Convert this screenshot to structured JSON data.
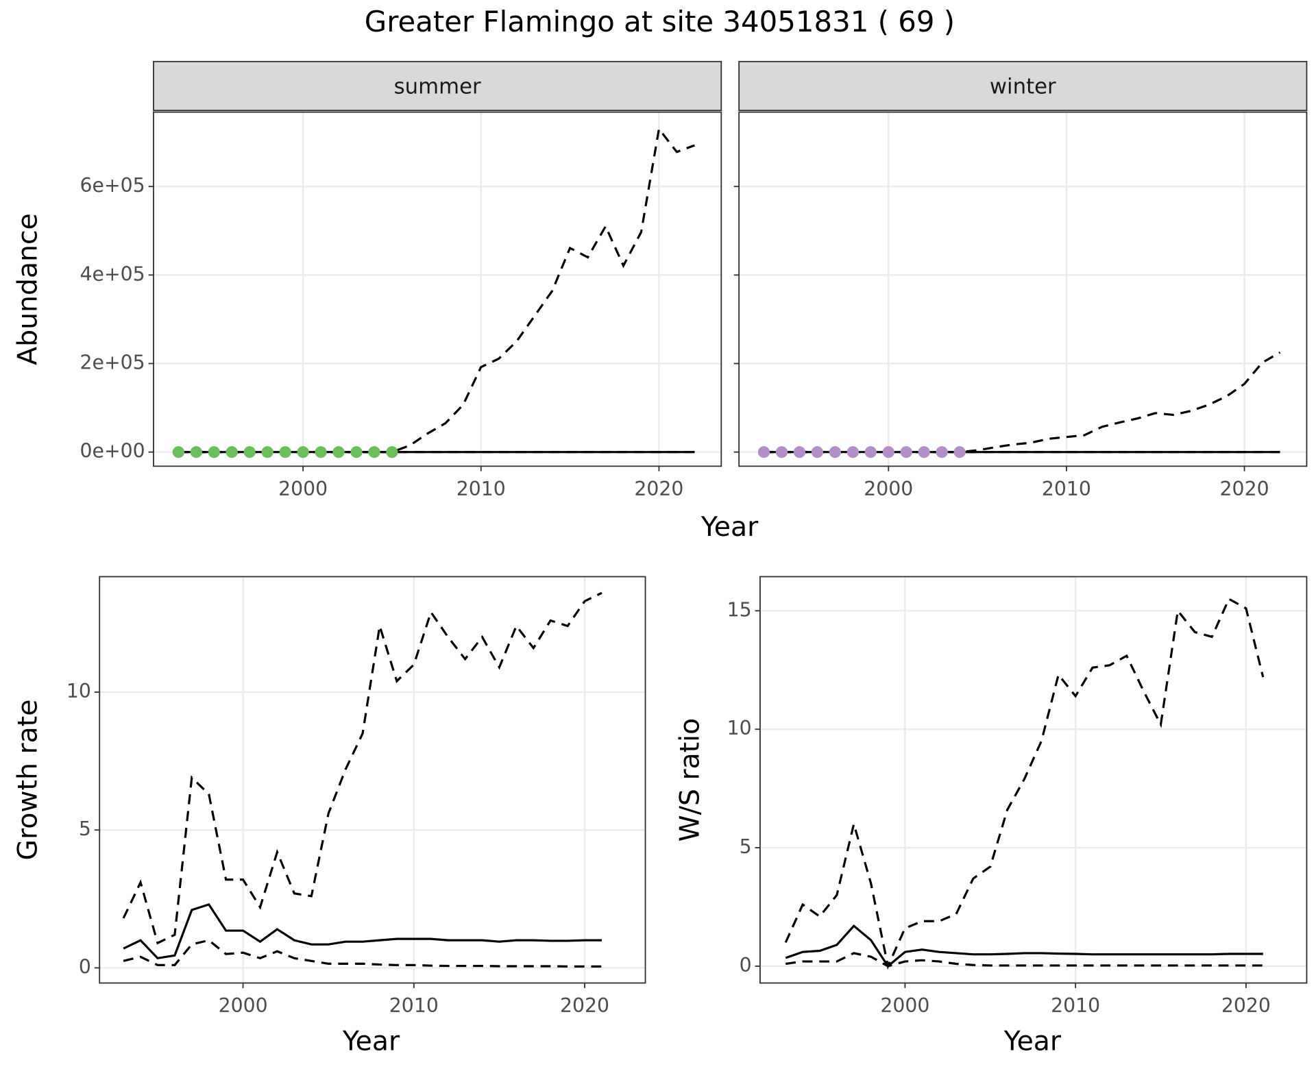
{
  "title": "Greater Flamingo at site 34051831 ( 69 )",
  "chart_data": [
    {
      "type": "line",
      "strip": "summer",
      "ylabel": "Abundance",
      "xlabel": "Year",
      "x": [
        1993,
        1994,
        1995,
        1996,
        1997,
        1998,
        1999,
        2000,
        2001,
        2002,
        2003,
        2004,
        2005,
        2006,
        2007,
        2008,
        2009,
        2010,
        2011,
        2012,
        2013,
        2014,
        2015,
        2016,
        2017,
        2018,
        2019,
        2020,
        2021,
        2022
      ],
      "xlim": [
        1991.6,
        2023.5
      ],
      "xticks": [
        2000,
        2010,
        2020
      ],
      "ylim": [
        -32000,
        768000
      ],
      "yticks": [
        {
          "value": 0,
          "label": "0e+00"
        },
        {
          "value": 200000,
          "label": "2e+05"
        },
        {
          "value": 400000,
          "label": "4e+05"
        },
        {
          "value": 600000,
          "label": "6e+05"
        }
      ],
      "grid": true,
      "series": [
        {
          "color": "#000000",
          "dashed": true,
          "values": [
            0,
            0,
            0,
            0,
            0,
            0,
            0,
            0,
            0,
            0,
            0,
            0,
            0,
            15000,
            42000,
            65000,
            107000,
            192000,
            211000,
            250000,
            307000,
            364000,
            461000,
            440000,
            510000,
            421000,
            497000,
            730000,
            678000,
            693000
          ]
        },
        {
          "color": "#000000",
          "dashed": true,
          "values": [
            0,
            0,
            0,
            0,
            0,
            0,
            0,
            0,
            0,
            0,
            0,
            0,
            0,
            0,
            0,
            0,
            0,
            0,
            0,
            0,
            0,
            0,
            0,
            0,
            0,
            0,
            0,
            0,
            0,
            0
          ]
        },
        {
          "color": "#000000",
          "dashed": false,
          "values": [
            0,
            0,
            0,
            0,
            0,
            0,
            0,
            0,
            0,
            0,
            0,
            0,
            0,
            0,
            0,
            0,
            0,
            0,
            0,
            0,
            0,
            0,
            0,
            0,
            0,
            0,
            0,
            0,
            0,
            0
          ]
        },
        {
          "color": "#6abf5a",
          "marker": "point",
          "values": [
            0,
            0,
            0,
            0,
            0,
            0,
            0,
            0,
            0,
            0,
            0,
            0,
            0,
            null,
            null,
            null,
            null,
            null,
            null,
            null,
            null,
            null,
            null,
            null,
            null,
            null,
            null,
            null,
            null,
            null
          ]
        }
      ]
    },
    {
      "type": "line",
      "strip": "winter",
      "x": [
        1993,
        1994,
        1995,
        1996,
        1997,
        1998,
        1999,
        2000,
        2001,
        2002,
        2003,
        2004,
        2005,
        2006,
        2007,
        2008,
        2009,
        2010,
        2011,
        2012,
        2013,
        2014,
        2015,
        2016,
        2017,
        2018,
        2019,
        2020,
        2021,
        2022
      ],
      "xlim": [
        1991.6,
        2023.5
      ],
      "xticks": [
        2000,
        2010,
        2020
      ],
      "ylim": [
        -32000,
        768000
      ],
      "yticks": [
        0,
        200000,
        400000,
        600000
      ],
      "ytick_labels": false,
      "grid": true,
      "series": [
        {
          "color": "#000000",
          "dashed": true,
          "values": [
            0,
            0,
            0,
            0,
            0,
            0,
            0,
            0,
            0,
            0,
            0,
            0,
            4000,
            11000,
            17000,
            21000,
            30000,
            34000,
            38000,
            57000,
            67000,
            76000,
            88000,
            84000,
            93000,
            107000,
            126000,
            154000,
            202000,
            225000
          ]
        },
        {
          "color": "#000000",
          "dashed": true,
          "values": [
            0,
            0,
            0,
            0,
            0,
            0,
            0,
            0,
            0,
            0,
            0,
            0,
            0,
            0,
            0,
            0,
            0,
            0,
            0,
            0,
            0,
            0,
            0,
            0,
            0,
            0,
            0,
            0,
            0,
            0
          ]
        },
        {
          "color": "#000000",
          "dashed": false,
          "values": [
            0,
            0,
            0,
            0,
            0,
            0,
            0,
            0,
            0,
            0,
            0,
            0,
            0,
            0,
            0,
            0,
            0,
            0,
            0,
            0,
            0,
            0,
            0,
            0,
            0,
            0,
            0,
            0,
            0,
            0
          ]
        },
        {
          "color": "#b28fc9",
          "marker": "point",
          "values": [
            0,
            0,
            0,
            0,
            0,
            0,
            0,
            0,
            0,
            0,
            0,
            0,
            null,
            null,
            null,
            null,
            null,
            null,
            null,
            null,
            null,
            null,
            null,
            null,
            null,
            null,
            null,
            null,
            null,
            null
          ]
        }
      ]
    },
    {
      "type": "line",
      "ylabel": "Growth rate",
      "xlabel": "Year",
      "x": [
        1993,
        1994,
        1995,
        1996,
        1997,
        1998,
        1999,
        2000,
        2001,
        2002,
        2003,
        2004,
        2005,
        2006,
        2007,
        2008,
        2009,
        2010,
        2011,
        2012,
        2013,
        2014,
        2015,
        2016,
        2017,
        2018,
        2019,
        2020,
        2021
      ],
      "xlim": [
        1991.6,
        2023.55
      ],
      "xticks": [
        2000,
        2010,
        2020
      ],
      "ylim": [
        -0.55,
        14.19
      ],
      "yticks": [
        0,
        5,
        10
      ],
      "grid": true,
      "series": [
        {
          "color": "#000000",
          "dashed": true,
          "values": [
            1.8,
            3.1,
            0.9,
            1.2,
            6.9,
            6.3,
            3.2,
            3.2,
            2.2,
            4.2,
            2.7,
            2.6,
            5.6,
            7.2,
            8.5,
            12.4,
            10.4,
            11.0,
            12.9,
            12.0,
            11.2,
            12.0,
            10.9,
            12.4,
            11.6,
            12.6,
            12.4,
            13.3,
            13.6
          ]
        },
        {
          "color": "#000000",
          "dashed": true,
          "values": [
            0.25,
            0.4,
            0.1,
            0.1,
            0.85,
            1.0,
            0.5,
            0.55,
            0.35,
            0.6,
            0.35,
            0.25,
            0.15,
            0.15,
            0.15,
            0.12,
            0.1,
            0.1,
            0.08,
            0.07,
            0.07,
            0.07,
            0.06,
            0.06,
            0.06,
            0.06,
            0.05,
            0.05,
            0.05
          ]
        },
        {
          "color": "#000000",
          "dashed": false,
          "values": [
            0.7,
            1.0,
            0.35,
            0.45,
            2.1,
            2.3,
            1.35,
            1.35,
            0.95,
            1.4,
            1.0,
            0.85,
            0.85,
            0.95,
            0.95,
            1.0,
            1.05,
            1.05,
            1.05,
            1.0,
            1.0,
            1.0,
            0.95,
            1.0,
            1.0,
            0.98,
            0.98,
            1.0,
            1.0
          ]
        }
      ]
    },
    {
      "type": "line",
      "ylabel": "W/S ratio",
      "xlabel": "Year",
      "x": [
        1993,
        1994,
        1995,
        1996,
        1997,
        1998,
        1999,
        2000,
        2001,
        2002,
        2003,
        2004,
        2005,
        2006,
        2007,
        2008,
        2009,
        2010,
        2011,
        2012,
        2013,
        2014,
        2015,
        2016,
        2017,
        2018,
        2019,
        2020,
        2021
      ],
      "xlim": [
        1991.5,
        2023.56
      ],
      "xticks": [
        2000,
        2010,
        2020
      ],
      "ylim": [
        -0.71,
        16.44
      ],
      "yticks": [
        0,
        5,
        10,
        15
      ],
      "grid": true,
      "series": [
        {
          "color": "#000000",
          "dashed": true,
          "values": [
            1.0,
            2.6,
            2.1,
            3.0,
            6.0,
            3.5,
            0.0,
            1.6,
            1.9,
            1.9,
            2.2,
            3.7,
            4.2,
            6.6,
            7.9,
            9.5,
            12.3,
            11.4,
            12.6,
            12.7,
            13.1,
            11.6,
            10.2,
            15.0,
            14.1,
            13.9,
            15.5,
            15.1,
            12.2
          ]
        },
        {
          "color": "#000000",
          "dashed": true,
          "values": [
            0.1,
            0.2,
            0.2,
            0.2,
            0.55,
            0.4,
            0.0,
            0.2,
            0.25,
            0.2,
            0.1,
            0.05,
            0.03,
            0.03,
            0.03,
            0.03,
            0.03,
            0.03,
            0.03,
            0.03,
            0.03,
            0.03,
            0.03,
            0.03,
            0.03,
            0.03,
            0.03,
            0.03,
            0.03
          ]
        },
        {
          "color": "#000000",
          "dashed": false,
          "values": [
            0.35,
            0.6,
            0.65,
            0.9,
            1.7,
            1.1,
            0.0,
            0.6,
            0.7,
            0.6,
            0.55,
            0.5,
            0.5,
            0.52,
            0.55,
            0.55,
            0.53,
            0.52,
            0.5,
            0.5,
            0.5,
            0.5,
            0.5,
            0.5,
            0.5,
            0.5,
            0.52,
            0.52,
            0.52
          ]
        }
      ]
    }
  ]
}
